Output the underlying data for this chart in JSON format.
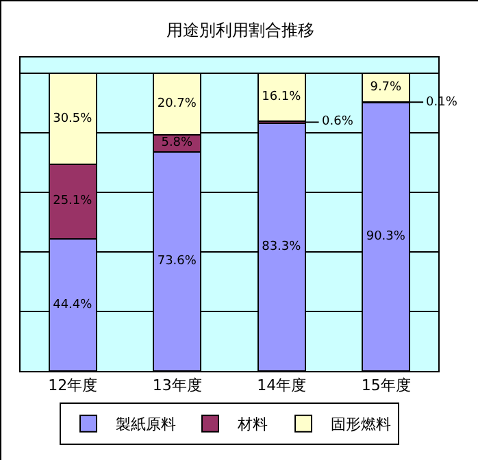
{
  "chart_data": {
    "type": "bar",
    "title": "用途別利用割合推移",
    "categories": [
      "12年度",
      "13年度",
      "14年度",
      "15年度"
    ],
    "stacked": true,
    "series": [
      {
        "name": "製紙原料",
        "color": "#9999ff",
        "values": [
          44.4,
          73.6,
          83.3,
          90.3
        ],
        "value_labels": [
          "44.4%",
          "73.6%",
          "83.3%",
          "90.3%"
        ]
      },
      {
        "name": "材料",
        "color": "#993366",
        "values": [
          25.1,
          5.8,
          0.6,
          0.1
        ],
        "value_labels": [
          "25.1%",
          "5.8%",
          "0.6%",
          "0.1%"
        ]
      },
      {
        "name": "固形燃料",
        "color": "#ffffcc",
        "values": [
          30.5,
          20.7,
          16.1,
          9.7
        ],
        "value_labels": [
          "30.5%",
          "20.7%",
          "16.1%",
          "9.7%"
        ]
      }
    ],
    "grid": "y",
    "tick_labels": "x",
    "legend": "bottom"
  }
}
